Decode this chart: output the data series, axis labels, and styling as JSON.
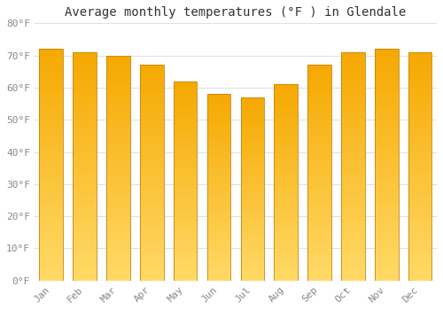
{
  "title": "Average monthly temperatures (°F ) in Glendale",
  "months": [
    "Jan",
    "Feb",
    "Mar",
    "Apr",
    "May",
    "Jun",
    "Jul",
    "Aug",
    "Sep",
    "Oct",
    "Nov",
    "Dec"
  ],
  "values": [
    72,
    71,
    70,
    67,
    62,
    58,
    57,
    61,
    67,
    71,
    72,
    71
  ],
  "bar_color_top": "#F5A800",
  "bar_color_bottom": "#FFD966",
  "bar_edge_color": "#C8830A",
  "background_color": "#FFFFFF",
  "grid_color": "#E0E0E0",
  "ylim": [
    0,
    80
  ],
  "yticks": [
    0,
    10,
    20,
    30,
    40,
    50,
    60,
    70,
    80
  ],
  "ytick_labels": [
    "0°F",
    "10°F",
    "20°F",
    "30°F",
    "40°F",
    "50°F",
    "60°F",
    "70°F",
    "80°F"
  ],
  "title_fontsize": 10,
  "tick_fontsize": 8,
  "tick_color": "#888888",
  "xlabel_rotation": 45,
  "bar_width": 0.7,
  "n_gradient": 100
}
